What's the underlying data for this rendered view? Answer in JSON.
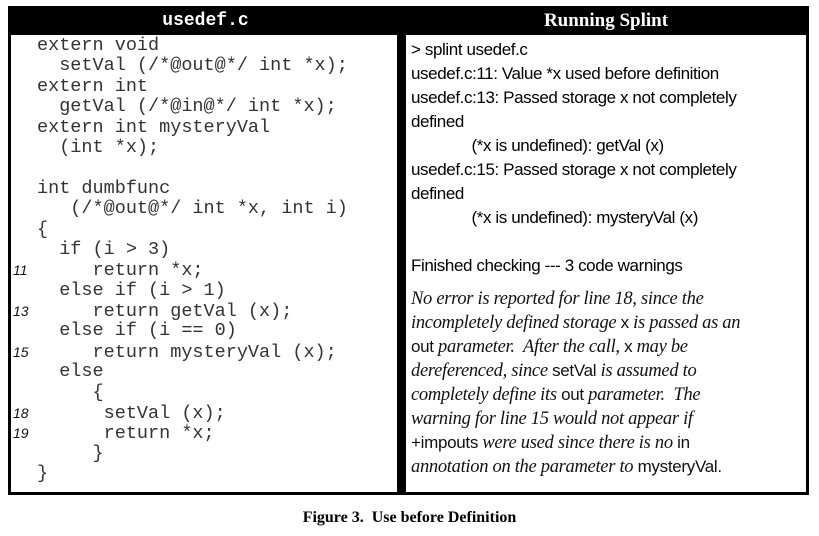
{
  "left_panel": {
    "title": "usedef.c",
    "code_lines": [
      {
        "num": "",
        "text": "extern void"
      },
      {
        "num": "",
        "text": "  setVal (/*@out@*/ int *x);"
      },
      {
        "num": "",
        "text": "extern int"
      },
      {
        "num": "",
        "text": "  getVal (/*@in@*/ int *x);"
      },
      {
        "num": "",
        "text": "extern int mysteryVal"
      },
      {
        "num": "",
        "text": "  (int *x);"
      },
      {
        "num": "",
        "text": ""
      },
      {
        "num": "",
        "text": "int dumbfunc"
      },
      {
        "num": "",
        "text": "   (/*@out@*/ int *x, int i)"
      },
      {
        "num": "",
        "text": "{"
      },
      {
        "num": "",
        "text": "  if (i > 3)"
      },
      {
        "num": "11",
        "text": "     return *x;"
      },
      {
        "num": "",
        "text": "  else if (i > 1)"
      },
      {
        "num": "13",
        "text": "     return getVal (x);"
      },
      {
        "num": "",
        "text": "  else if (i == 0)"
      },
      {
        "num": "15",
        "text": "     return mysteryVal (x);"
      },
      {
        "num": "",
        "text": "  else"
      },
      {
        "num": "",
        "text": "     {"
      },
      {
        "num": "18",
        "text": "      setVal (x);"
      },
      {
        "num": "19",
        "text": "      return *x;"
      },
      {
        "num": "",
        "text": "     }"
      },
      {
        "num": "",
        "text": "}"
      }
    ]
  },
  "right_panel": {
    "title": "Running Splint",
    "output_lines": [
      "> splint usedef.c",
      "usedef.c:11: Value *x used before definition",
      "usedef.c:13: Passed storage x not completely",
      "defined",
      "              (*x is undefined): getVal (x)",
      "usedef.c:15: Passed storage x not completely",
      "defined",
      "              (*x is undefined): mysteryVal (x)",
      "",
      "Finished checking --- 3 code warnings"
    ],
    "note_lines": [
      [
        {
          "t": "No error is reported for line 18, since the",
          "code": false
        }
      ],
      [
        {
          "t": "incompletely defined storage ",
          "code": false
        },
        {
          "t": "x",
          "code": true
        },
        {
          "t": " is passed as an",
          "code": false
        }
      ],
      [
        {
          "t": "out",
          "code": true
        },
        {
          "t": " parameter.  After the call, ",
          "code": false
        },
        {
          "t": "x",
          "code": true
        },
        {
          "t": " may be",
          "code": false
        }
      ],
      [
        {
          "t": "dereferenced, since ",
          "code": false
        },
        {
          "t": "setVal",
          "code": true
        },
        {
          "t": " is assumed to",
          "code": false
        }
      ],
      [
        {
          "t": "completely define its ",
          "code": false
        },
        {
          "t": "out",
          "code": true
        },
        {
          "t": " parameter.  The",
          "code": false
        }
      ],
      [
        {
          "t": "warning for line 15 would not appear if",
          "code": false
        }
      ],
      [
        {
          "t": "+impouts",
          "code": true
        },
        {
          "t": " were used since there is no ",
          "code": false
        },
        {
          "t": "in",
          "code": true
        }
      ],
      [
        {
          "t": "annotation on the parameter to ",
          "code": false
        },
        {
          "t": "mysteryVal",
          "code": true
        },
        {
          "t": ".",
          "code": true
        }
      ]
    ]
  },
  "caption": "Figure 3.  Use before Definition"
}
